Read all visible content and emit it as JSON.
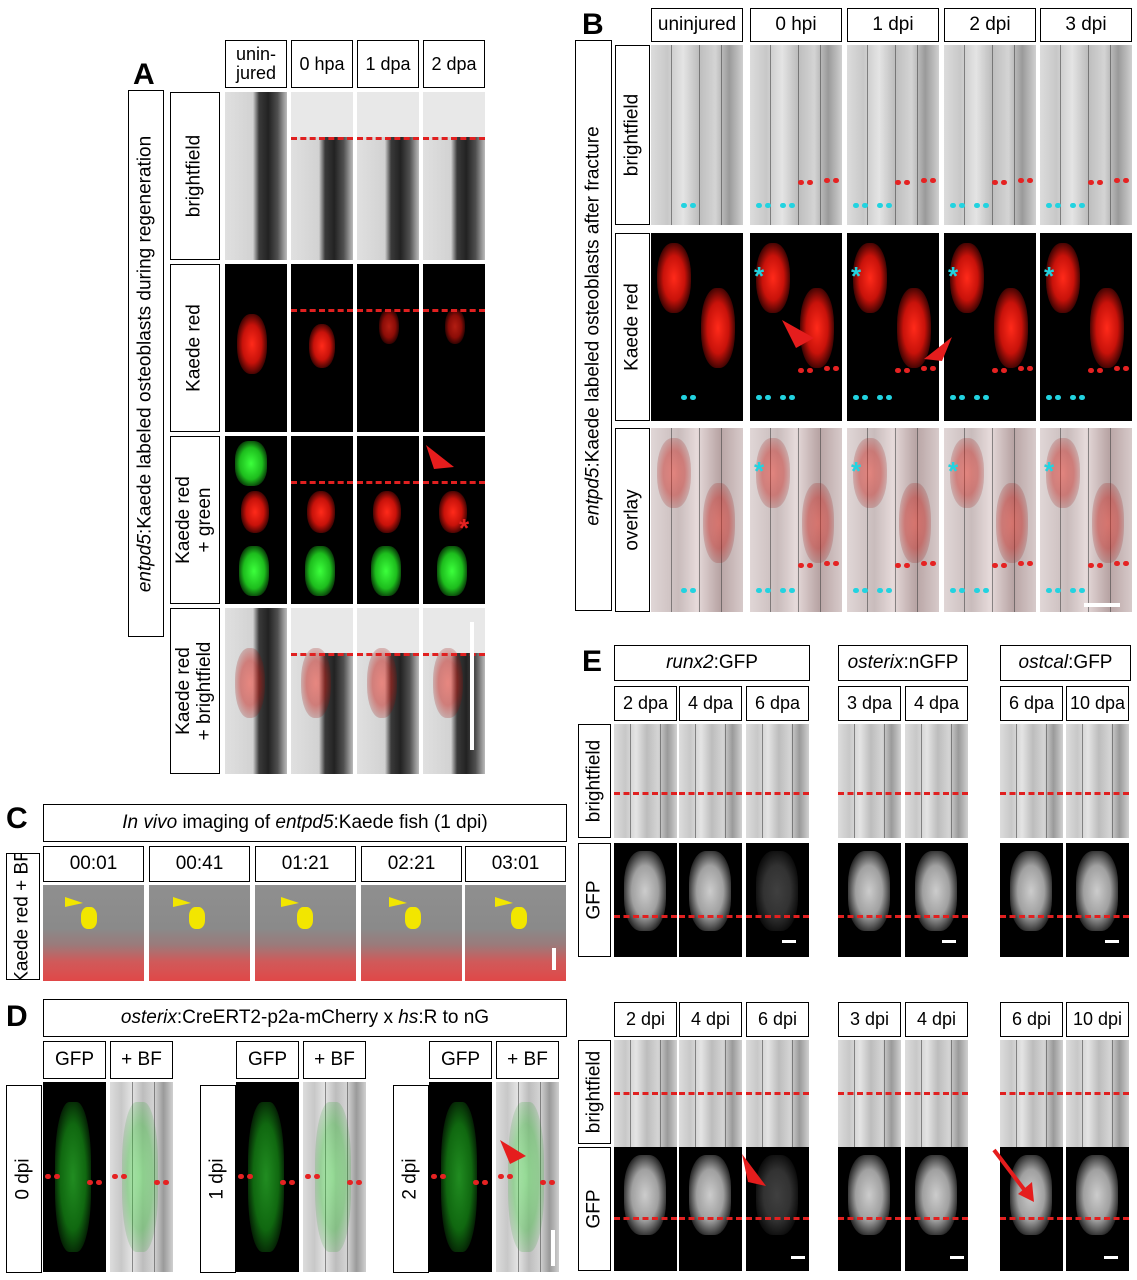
{
  "panelA": {
    "letter": "A",
    "side_label_italic": "entpd5",
    "side_label_rest": ":Kaede labeled osteoblasts during regeneration",
    "columns": [
      "unin-\njured",
      "0 hpa",
      "1 dpa",
      "2 dpa"
    ],
    "rows": [
      "brightfield",
      "Kaede red",
      "Kaede red\n+ green",
      "Kaede red\n+ brightfield"
    ]
  },
  "panelB": {
    "letter": "B",
    "side_label_italic": "entpd5",
    "side_label_rest": ":Kaede labeled osteoblasts after fracture",
    "columns": [
      "uninjured",
      "0 hpi",
      "1 dpi",
      "2 dpi",
      "3 dpi"
    ],
    "rows": [
      "brightfield",
      "Kaede red",
      "overlay"
    ]
  },
  "panelC": {
    "letter": "C",
    "title_italic1": "In vivo",
    "title_mid": " imaging of ",
    "title_italic2": "entpd5",
    "title_rest": ":Kaede fish (1 dpi)",
    "timepoints": [
      "00:01",
      "00:41",
      "01:21",
      "02:21",
      "03:01"
    ],
    "row": "Kaede red + BF"
  },
  "panelD": {
    "letter": "D",
    "title_italic1": "osterix",
    "title_mid": ":CreERT2-p2a-mCherry x ",
    "title_italic2": "hs",
    "title_rest": ":R to nG",
    "columns": [
      "GFP",
      "+ BF"
    ],
    "rows": [
      "0 dpi",
      "1 dpi",
      "2 dpi"
    ]
  },
  "panelE": {
    "letter": "E",
    "groups": [
      {
        "italic": "runx2",
        "rest": ":GFP",
        "top": [
          "2 dpa",
          "4 dpa",
          "6 dpa"
        ],
        "bottom": [
          "2 dpi",
          "4 dpi",
          "6 dpi"
        ]
      },
      {
        "italic": "osterix",
        "rest": ":nGFP",
        "top": [
          "3 dpa",
          "4 dpa"
        ],
        "bottom": [
          "3 dpi",
          "4 dpi"
        ]
      },
      {
        "italic": "ostcal",
        "rest": ":GFP",
        "top": [
          "6 dpa",
          "10 dpa"
        ],
        "bottom": [
          "6 dpi",
          "10 dpi"
        ]
      }
    ],
    "rows": [
      "brightfield",
      "GFP",
      "brightfield",
      "GFP"
    ]
  },
  "colors": {
    "marker_red": "#e02020",
    "marker_cyan": "#22d3e0",
    "highlight_yellow": "#f2e600"
  }
}
